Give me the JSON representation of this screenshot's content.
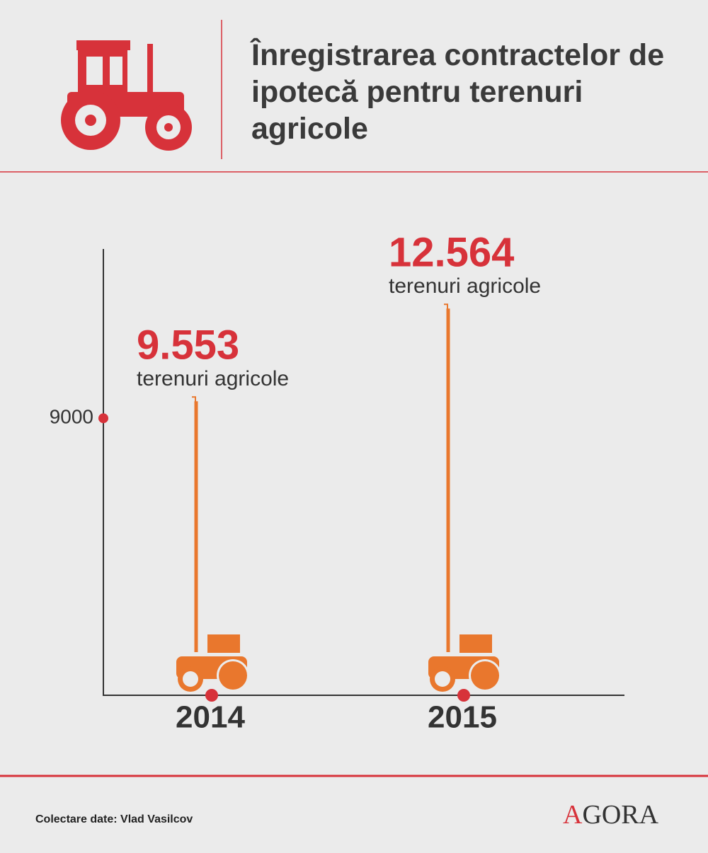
{
  "chart_data": {
    "type": "bar",
    "title": "Înregistrarea contractelor de ipotecă pentru terenuri agricole",
    "categories": [
      "2014",
      "2015"
    ],
    "values": [
      9553,
      12564
    ],
    "value_labels": [
      "9.553",
      "12.564"
    ],
    "unit_label": "terenuri agricole",
    "color": "#e9772d",
    "ylim": [
      0,
      14500
    ],
    "yticks": [
      9000
    ],
    "source": "Colectare date: Vlad Vasilcov",
    "logo": "AGORA"
  }
}
